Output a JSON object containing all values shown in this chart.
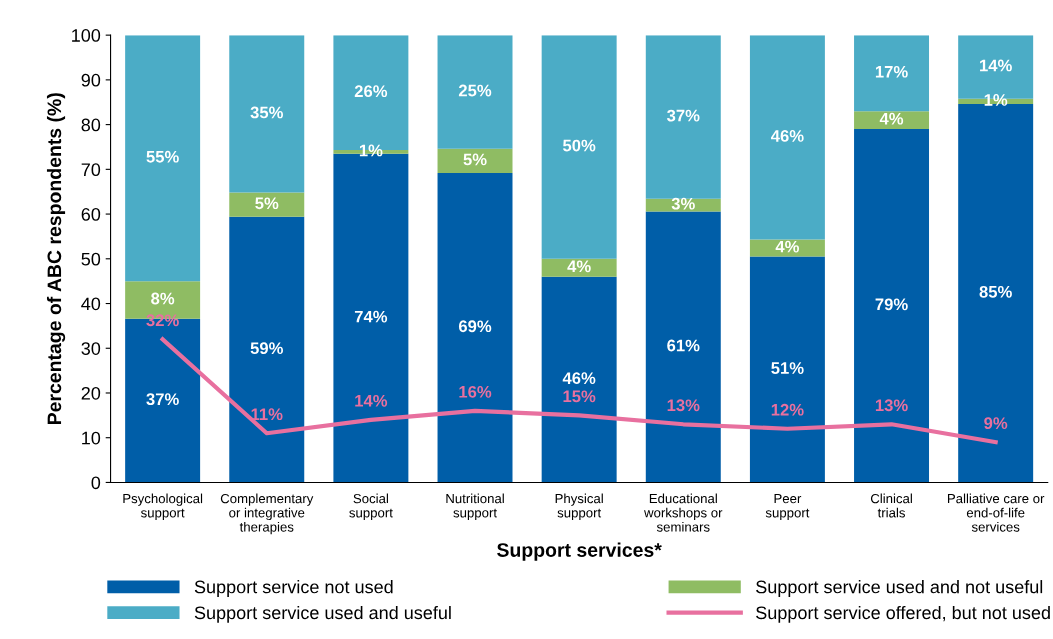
{
  "chart_data": {
    "type": "bar",
    "stacked": true,
    "xlabel": "Support services*",
    "ylabel": "Percentage of ABC respondents (%)",
    "categories": [
      "Psychological\nsupport",
      "Complementary\nor integrative\ntherapies",
      "Social\nsupport",
      "Nutritional\nsupport",
      "Physical\nsupport",
      "Educational\nworkshops or\nseminars",
      "Peer\nsupport",
      "Clinical\ntrials",
      "Palliative care or\nend-of-life\nservices"
    ],
    "series": [
      {
        "name": "Support service not used",
        "color": "#005ea8",
        "values": [
          36.6,
          59.4,
          73.5,
          69.2,
          46,
          60.6,
          50.5,
          79,
          84.6
        ],
        "value_labels": [
          "37%",
          "59%",
          "74%",
          "69%",
          "46%",
          "61%",
          "51%",
          "79%",
          "85%"
        ]
      },
      {
        "name": "Support service used and not useful",
        "color": "#8fbc63",
        "values": [
          8.4,
          5.4,
          0.8,
          5.4,
          4,
          2.8,
          3.8,
          4,
          1.2
        ],
        "value_labels": [
          "8%",
          "5%",
          "1%",
          "5%",
          "4%",
          "3%",
          "4%",
          "4%",
          "1%"
        ]
      },
      {
        "name": "Support service used and useful",
        "color": "#4bacc6",
        "values": [
          55,
          35.2,
          25.7,
          25.4,
          50,
          36.6,
          45.7,
          17,
          14.2
        ],
        "value_labels": [
          "55%",
          "35%",
          "26%",
          "25%",
          "50%",
          "37%",
          "46%",
          "17%",
          "14%"
        ]
      },
      {
        "name": "Support service offered, but not used",
        "type": "line",
        "color": "#e8709f",
        "values": [
          32,
          11,
          14,
          16,
          15,
          13,
          12,
          13,
          9
        ],
        "value_labels": [
          "32%",
          "11%",
          "14%",
          "16%",
          "15%",
          "13%",
          "12%",
          "13%",
          "9%"
        ]
      }
    ],
    "ylim": [
      0,
      100
    ],
    "yticks": [
      0,
      10,
      20,
      30,
      40,
      50,
      60,
      70,
      80,
      90,
      100
    ],
    "grid": false,
    "legend": "bottom",
    "marker": "none"
  }
}
